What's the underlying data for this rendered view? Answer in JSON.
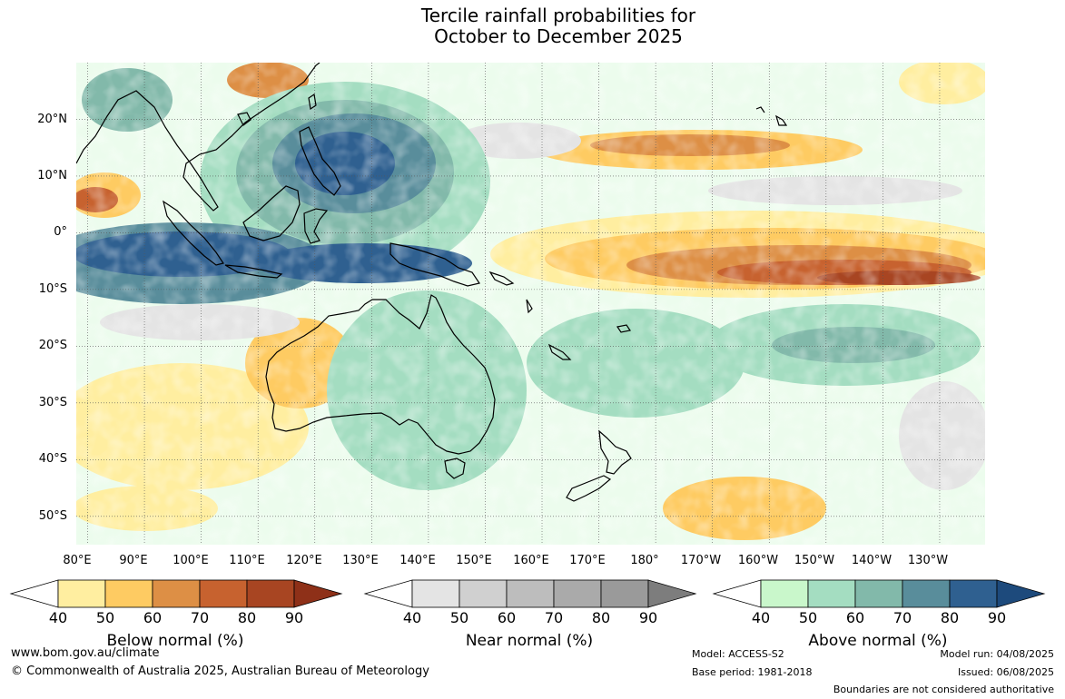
{
  "title": {
    "line1": "Tercile rainfall probabilities for",
    "line2": "October to December 2025"
  },
  "map": {
    "projection": "equirectangular",
    "lon_range": [
      78,
      238
    ],
    "lat_range": [
      -55,
      30
    ],
    "latitude_labels": [
      "20°N",
      "10°N",
      "0°",
      "10°S",
      "20°S",
      "30°S",
      "40°S",
      "50°S"
    ],
    "longitude_labels": [
      "80°E",
      "90°E",
      "100°E",
      "110°E",
      "120°E",
      "130°E",
      "140°E",
      "150°E",
      "160°E",
      "170°E",
      "180°",
      "170°W",
      "160°W",
      "150°W",
      "140°W",
      "130°W"
    ],
    "graticule": "dotted",
    "regions": [
      "Indo-China",
      "Indonesia",
      "Philippines",
      "New Guinea",
      "Australia",
      "Tasmania",
      "New Zealand",
      "Pacific islands"
    ]
  },
  "colorbars": [
    {
      "name": "below-normal",
      "title": "Below normal (%)",
      "ticks": [
        "40",
        "50",
        "60",
        "70",
        "80",
        "90"
      ],
      "colors": [
        "#ffeea0",
        "#fecb62",
        "#dd8f45",
        "#c7622f",
        "#a84522",
        "#8e3018"
      ]
    },
    {
      "name": "near-normal",
      "title": "Near normal (%)",
      "ticks": [
        "40",
        "50",
        "60",
        "70",
        "80",
        "90"
      ],
      "colors": [
        "#e4e4e4",
        "#d0d0d0",
        "#bdbdbd",
        "#aaaaaa",
        "#9a9a9a",
        "#7d7d7d"
      ]
    },
    {
      "name": "above-normal",
      "title": "Above normal (%)",
      "ticks": [
        "40",
        "50",
        "60",
        "70",
        "80",
        "90"
      ],
      "colors": [
        "#c9f7cb",
        "#a4ddc1",
        "#82b9aa",
        "#598d9b",
        "#2f6090",
        "#1d4a7c"
      ]
    }
  ],
  "footer": {
    "website": "www.bom.gov.au/climate",
    "copyright": "© Commonwealth of Australia 2025, Australian Bureau of Meteorology",
    "model": "Model: ACCESS-S2",
    "base_period": "Base period: 1981-2018",
    "model_run": "Model run: 04/08/2025",
    "issued": "Issued: 06/08/2025",
    "disclaimer": "Boundaries are not considered authoritative"
  }
}
